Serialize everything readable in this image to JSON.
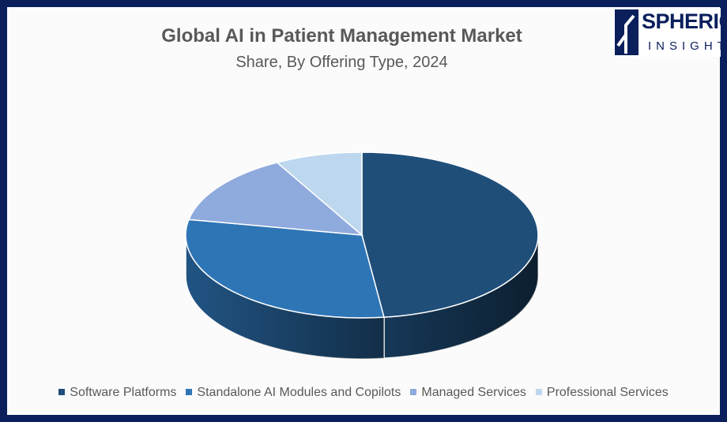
{
  "brand": {
    "name_line1": "SPHERICAL",
    "name_line2": "INSIGHTS",
    "color": "#0a1f5c"
  },
  "chart_data": {
    "type": "pie",
    "title": "Global AI in Patient Management Market",
    "subtitle": "Share, By Offering Type, 2024",
    "categories": [
      "Software Platforms",
      "Standalone AI Modules and Copilots",
      "Managed Services",
      "Professional Services"
    ],
    "values": [
      48,
      30,
      14,
      8
    ],
    "colors": [
      "#1f4e79",
      "#2e75b6",
      "#8faadc",
      "#bdd7ee"
    ],
    "legend_position": "bottom",
    "style": "3d"
  }
}
